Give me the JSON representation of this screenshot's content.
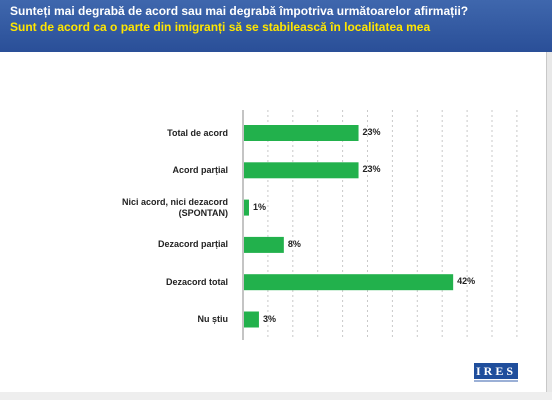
{
  "header": {
    "title": "Sunteți mai degrabă de acord sau mai degrabă împotriva următoarelor afirmații?",
    "subtitle": "Sunt de acord ca o parte din imigranți să se stabilească în localitatea mea"
  },
  "logo": {
    "text": "IRES"
  },
  "colors": {
    "header_bg": "#2f58a0",
    "title": "#ffffff",
    "subtitle": "#ffe600",
    "bar": "#22b14c"
  },
  "chart_data": {
    "type": "bar",
    "orientation": "horizontal",
    "title": "Sunt de acord ca o parte din imigranți să se stabilească în localitatea mea",
    "xlabel": "",
    "ylabel": "",
    "xlim": [
      0,
      55
    ],
    "grid": true,
    "categories": [
      [
        "Total de acord"
      ],
      [
        "Acord parțial"
      ],
      [
        "Nici acord, nici dezacord",
        "(SPONTAN)"
      ],
      [
        "Dezacord parțial"
      ],
      [
        "Dezacord total"
      ],
      [
        "Nu știu"
      ]
    ],
    "values": [
      23,
      23,
      1,
      8,
      42,
      3
    ],
    "value_labels": [
      "23%",
      "23%",
      "1%",
      "8%",
      "42%",
      "3%"
    ]
  }
}
